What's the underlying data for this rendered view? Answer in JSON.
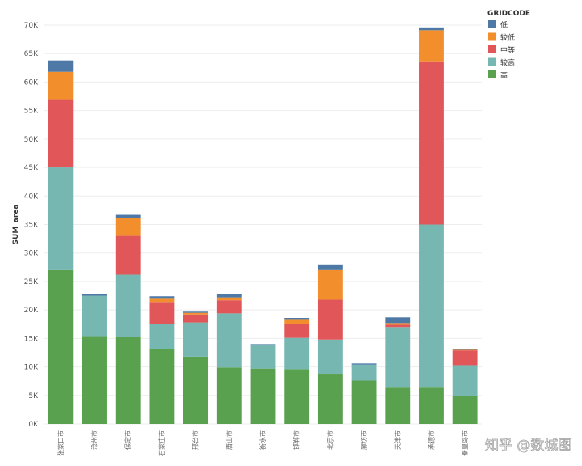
{
  "chart_data": {
    "type": "bar",
    "stacked": true,
    "title": "",
    "xlabel": "",
    "ylabel": "SUM_area",
    "ylim": [
      0,
      70000
    ],
    "y_ticks": [
      "0K",
      "5K",
      "10K",
      "15K",
      "20K",
      "25K",
      "30K",
      "35K",
      "40K",
      "45K",
      "50K",
      "55K",
      "60K",
      "65K",
      "70K"
    ],
    "grid": true,
    "legend_position": "top-right",
    "legend_title": "GRIDCODE",
    "categories": [
      "张家口市",
      "沧州市",
      "保定市",
      "石家庄市",
      "邢台市",
      "唐山市",
      "衡水市",
      "邯郸市",
      "北京市",
      "廊坊市",
      "天津市",
      "承德市",
      "秦皇岛市"
    ],
    "series": [
      {
        "name": "高",
        "color": "#59a14f",
        "values": [
          27000,
          15400,
          15300,
          13100,
          11800,
          9900,
          9700,
          9600,
          8800,
          7600,
          6500,
          6500,
          4900
        ]
      },
      {
        "name": "较高",
        "color": "#76b7b2",
        "values": [
          18000,
          7100,
          10900,
          4400,
          6000,
          9500,
          4200,
          5500,
          6000,
          2800,
          10500,
          28500,
          5400
        ]
      },
      {
        "name": "中等",
        "color": "#e15759",
        "values": [
          12000,
          0,
          6800,
          3900,
          1400,
          2300,
          0,
          2500,
          7000,
          0,
          400,
          28500,
          2600
        ]
      },
      {
        "name": "较低",
        "color": "#f28e2b",
        "values": [
          4800,
          0,
          3200,
          700,
          300,
          500,
          0,
          800,
          5200,
          0,
          300,
          5600,
          100
        ]
      },
      {
        "name": "低",
        "color": "#4e79a7",
        "values": [
          2000,
          300,
          500,
          300,
          200,
          600,
          100,
          200,
          1000,
          200,
          1000,
          500,
          200
        ]
      }
    ]
  },
  "watermark": "知乎 @数城图"
}
